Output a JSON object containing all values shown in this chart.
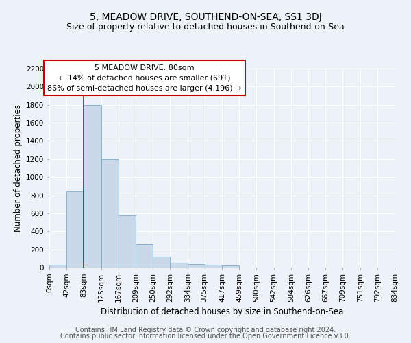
{
  "title": "5, MEADOW DRIVE, SOUTHEND-ON-SEA, SS1 3DJ",
  "subtitle": "Size of property relative to detached houses in Southend-on-Sea",
  "xlabel": "Distribution of detached houses by size in Southend-on-Sea",
  "ylabel": "Number of detached properties",
  "bin_edges": [
    0,
    42,
    83,
    125,
    167,
    209,
    250,
    292,
    334,
    375,
    417,
    459,
    500,
    542,
    584,
    626,
    667,
    709,
    751,
    792,
    834
  ],
  "bar_heights": [
    30,
    840,
    1800,
    1200,
    580,
    255,
    120,
    50,
    40,
    30,
    20,
    0,
    0,
    0,
    0,
    0,
    0,
    0,
    0,
    0
  ],
  "bar_color": "#c9d9ea",
  "bar_edge_color": "#7aaac8",
  "property_line_x": 83,
  "property_line_color": "#cc0000",
  "annotation_line1": "5 MEADOW DRIVE: 80sqm",
  "annotation_line2": "← 14% of detached houses are smaller (691)",
  "annotation_line3": "86% of semi-detached houses are larger (4,196) →",
  "annotation_box_color": "white",
  "annotation_box_edge_color": "#cc0000",
  "ylim": [
    0,
    2200
  ],
  "yticks": [
    0,
    200,
    400,
    600,
    800,
    1000,
    1200,
    1400,
    1600,
    1800,
    2000,
    2200
  ],
  "tick_labels": [
    "0sqm",
    "42sqm",
    "83sqm",
    "125sqm",
    "167sqm",
    "209sqm",
    "250sqm",
    "292sqm",
    "334sqm",
    "375sqm",
    "417sqm",
    "459sqm",
    "500sqm",
    "542sqm",
    "584sqm",
    "626sqm",
    "667sqm",
    "709sqm",
    "751sqm",
    "792sqm",
    "834sqm"
  ],
  "footer_line1": "Contains HM Land Registry data © Crown copyright and database right 2024.",
  "footer_line2": "Contains public sector information licensed under the Open Government Licence v3.0.",
  "background_color": "#edf2f8",
  "grid_color": "#ffffff",
  "title_fontsize": 10,
  "subtitle_fontsize": 9,
  "axis_label_fontsize": 8.5,
  "tick_fontsize": 7.5,
  "annotation_fontsize": 8,
  "footer_fontsize": 7
}
